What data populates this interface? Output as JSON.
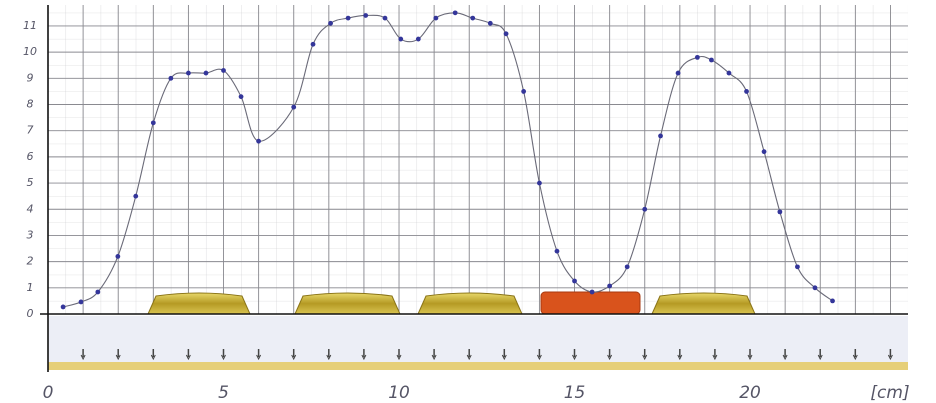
{
  "chart_data": {
    "type": "line",
    "x": [
      0.43,
      0.94,
      1.42,
      1.99,
      2.5,
      3.0,
      3.5,
      4.0,
      4.5,
      5.0,
      5.5,
      6.0,
      7.0,
      7.55,
      8.05,
      8.55,
      9.05,
      9.6,
      10.05,
      10.55,
      11.05,
      11.6,
      12.1,
      12.6,
      13.05,
      13.55,
      14.0,
      14.5,
      15.0,
      15.5,
      16.0,
      16.5,
      17.0,
      17.45,
      17.95,
      18.5,
      18.9,
      19.4,
      19.9,
      20.4,
      20.85,
      21.35,
      21.85,
      22.35
    ],
    "series": [
      {
        "color": "#34369a",
        "values": [
          0.27,
          0.46,
          0.84,
          2.2,
          4.5,
          7.3,
          9.0,
          9.2,
          9.2,
          9.3,
          8.3,
          6.6,
          7.9,
          10.3,
          11.1,
          11.3,
          11.4,
          11.3,
          10.5,
          10.5,
          11.3,
          11.5,
          11.3,
          11.1,
          10.7,
          8.5,
          5.0,
          2.4,
          1.26,
          0.84,
          1.07,
          1.8,
          4.0,
          6.8,
          9.2,
          9.8,
          9.7,
          9.2,
          8.5,
          6.2,
          3.9,
          1.8,
          1.0,
          0.5
        ]
      }
    ],
    "xlim": [
      0,
      24.5
    ],
    "ylim": [
      0,
      11.8
    ],
    "xticks": [
      0,
      5,
      10,
      15,
      20
    ],
    "yticks": [
      0,
      1,
      2,
      3,
      4,
      5,
      6,
      7,
      8,
      9,
      10,
      11
    ],
    "xlabel": "[cm]",
    "grid": true
  }
}
